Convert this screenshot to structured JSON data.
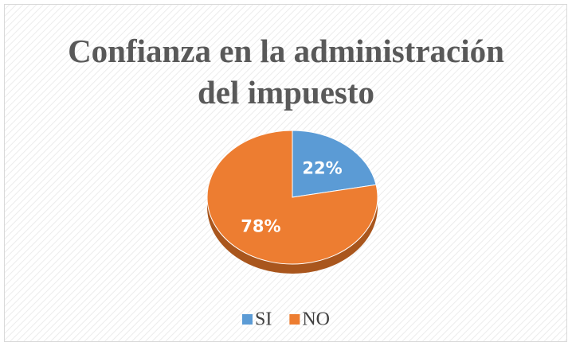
{
  "chart_data": {
    "type": "pie",
    "title": "Confianza en la administración del impuesto",
    "categories": [
      "SI",
      "NO"
    ],
    "values": [
      22,
      78
    ],
    "value_labels": [
      "22%",
      "78%"
    ],
    "colors": [
      "#5b9bd5",
      "#ed7d31"
    ],
    "legend": "bottom"
  }
}
